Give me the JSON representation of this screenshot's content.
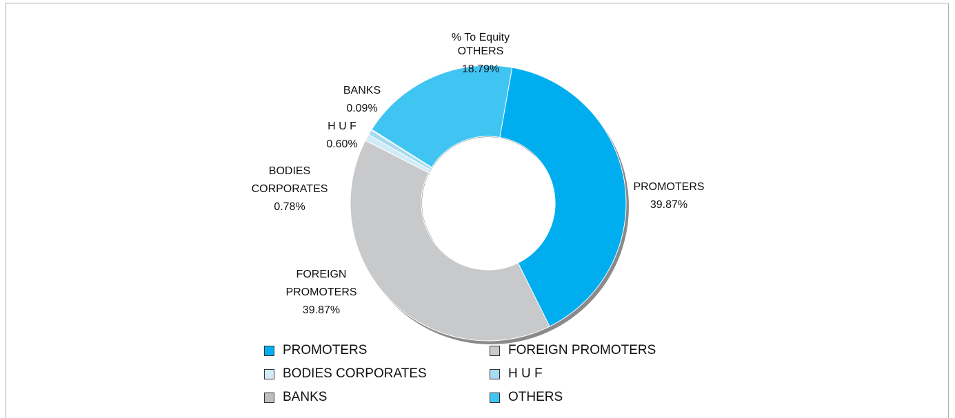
{
  "chart_data": {
    "type": "donut",
    "title": "% To Equity",
    "categories": [
      "PROMOTERS",
      "FOREIGN PROMOTERS",
      "BODIES CORPORATES",
      "H U F",
      "BANKS",
      "OTHERS"
    ],
    "values": [
      39.87,
      39.87,
      0.78,
      0.6,
      0.09,
      18.79
    ],
    "value_labels": [
      "39.87%",
      "39.87%",
      "0.78%",
      "0.60%",
      "0.09%",
      "18.79%"
    ],
    "colors": [
      "#00aeef",
      "#c8c9cb",
      "#d2ebf8",
      "#a6dbf2",
      "#bdbec0",
      "#40c5f2"
    ],
    "legend": "bottom"
  }
}
